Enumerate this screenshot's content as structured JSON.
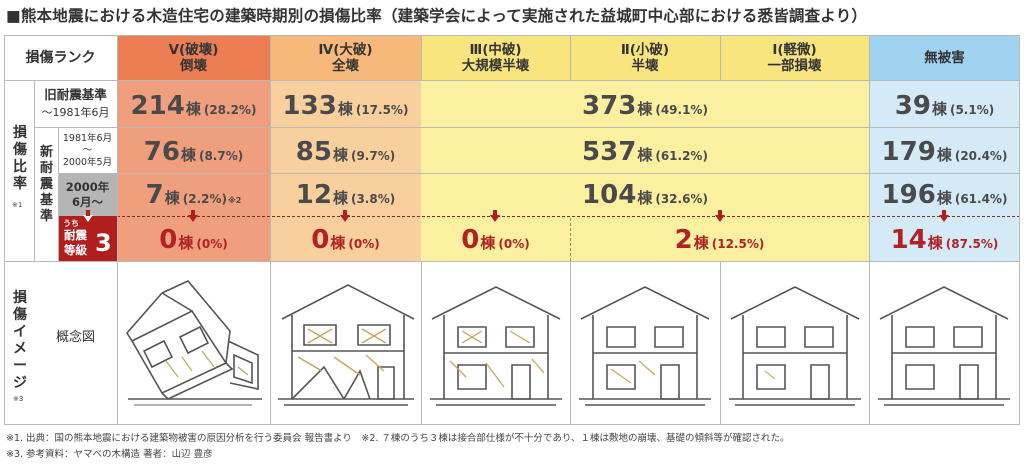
{
  "title": "■熊本地震における木造住宅の建築時期別の損傷比率（建築学会によって実施された益城町中心部における悉皆調査より）",
  "header": {
    "rank_label": "損傷ランク",
    "columns": [
      {
        "line1": "Ⅴ(破壊)",
        "line2": "倒壊"
      },
      {
        "line1": "Ⅳ(大破)",
        "line2": "全壊"
      },
      {
        "line1": "Ⅲ(中破)",
        "line2": "大規模半壊"
      },
      {
        "line1": "Ⅱ(小破)",
        "line2": "半壊"
      },
      {
        "line1": "Ⅰ(軽微)",
        "line2": "一部損壊"
      },
      {
        "line1": "無被害",
        "line2": ""
      }
    ]
  },
  "side": {
    "ratio_label": "損傷比率",
    "ratio_note": "※1",
    "new_standard": "新耐震基準",
    "image_label": "損傷イメージ",
    "image_note": "※3",
    "concept_label": "概念図"
  },
  "rows": [
    {
      "label1": "旧耐震基準",
      "label2": "～1981年6月",
      "v": {
        "count": "214",
        "unit": "棟",
        "pct": "(28.2%)"
      },
      "iv": {
        "count": "133",
        "unit": "棟",
        "pct": "(17.5%)"
      },
      "mid": {
        "count": "373",
        "unit": "棟",
        "pct": "(49.1%)"
      },
      "none": {
        "count": "39",
        "unit": "棟",
        "pct": "(5.1%)"
      }
    },
    {
      "label1": "1981年6月",
      "label_mid": "～",
      "label2": "2000年5月",
      "v": {
        "count": "76",
        "unit": "棟",
        "pct": "(8.7%)"
      },
      "iv": {
        "count": "85",
        "unit": "棟",
        "pct": "(9.7%)"
      },
      "mid": {
        "count": "537",
        "unit": "棟",
        "pct": "(61.2%)"
      },
      "none": {
        "count": "179",
        "unit": "棟",
        "pct": "(20.4%)"
      }
    },
    {
      "label1": "2000年",
      "label2": "6月～",
      "v": {
        "count": "7",
        "unit": "棟",
        "pct": "(2.2%)",
        "note": "※2"
      },
      "iv": {
        "count": "12",
        "unit": "棟",
        "pct": "(3.8%)"
      },
      "mid": {
        "count": "104",
        "unit": "棟",
        "pct": "(32.6%)"
      },
      "none": {
        "count": "196",
        "unit": "棟",
        "pct": "(61.4%)"
      }
    }
  ],
  "grade3": {
    "uchi": "うち",
    "line1": "耐震",
    "line2": "等級",
    "num": "3",
    "v": {
      "count": "0",
      "unit": "棟",
      "pct": "(0%)"
    },
    "iv": {
      "count": "0",
      "unit": "棟",
      "pct": "(0%)"
    },
    "iii": {
      "count": "0",
      "unit": "棟",
      "pct": "(0%)"
    },
    "ii_i": {
      "count": "2",
      "unit": "棟",
      "pct": "(12.5%)"
    },
    "none": {
      "count": "14",
      "unit": "棟",
      "pct": "(87.5%)"
    }
  },
  "notes": {
    "line1": "※1. 出典：国の熊本地震における建築物被害の原因分析を行う委員会 報告書より　※2. ７棟のうち３棟は接合部仕様が不十分であり、１棟は敷地の崩壊、基礎の傾斜等が確認された。",
    "line2": "※3. 参考資料：ヤマベの木構造 著者：山辺 豊彦"
  },
  "colors": {
    "v_col": "#ef9f7e",
    "iv_col": "#f9cf9e",
    "mid_col": "#fbf0a0",
    "none_col": "#d4ebf7",
    "header_v": "#ec7e54",
    "header_iv": "#f7b97a",
    "header_mid": "#f8e57d",
    "header_none": "#9fd3ef",
    "grade3": "#b01e1e"
  }
}
